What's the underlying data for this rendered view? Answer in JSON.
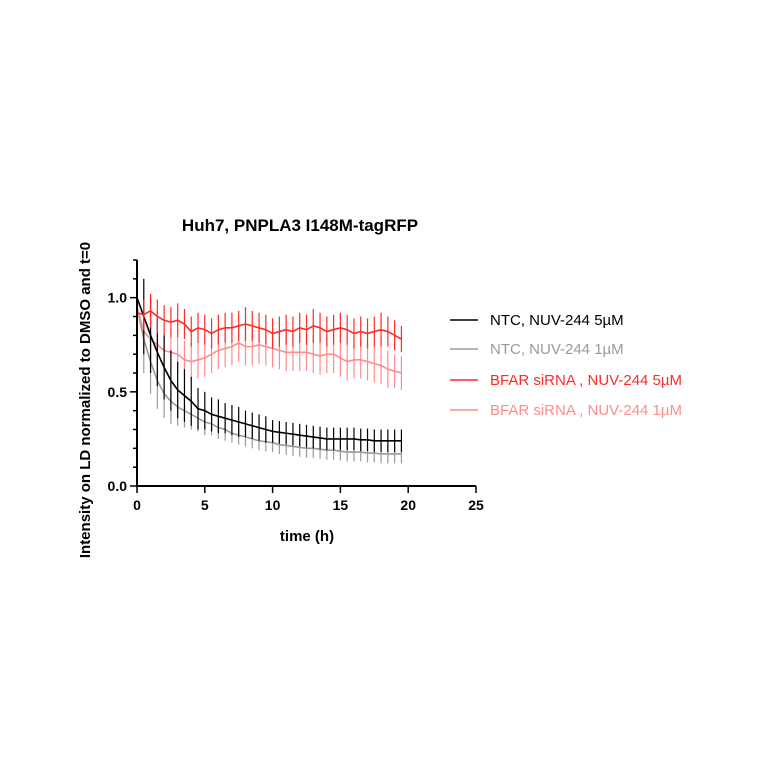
{
  "chart_data": {
    "type": "line",
    "title": "Huh7, PNPLA3 I148M-tagRFP",
    "xlabel": "time (h)",
    "ylabel": "Intensity on LD normalized to DMSO and t=0",
    "xlim": [
      0,
      25
    ],
    "ylim": [
      0,
      1.2
    ],
    "xticks": [
      "0",
      "5",
      "10",
      "15",
      "20",
      "25"
    ],
    "yticks": [
      "0.0",
      "0.5",
      "1.0"
    ],
    "grid": false,
    "legend_position": "right",
    "error_bars": true,
    "x": [
      0,
      0.5,
      1,
      1.5,
      2,
      2.5,
      3,
      3.5,
      4,
      4.5,
      5,
      5.5,
      6,
      6.5,
      7,
      7.5,
      8,
      8.5,
      9,
      9.5,
      10,
      10.5,
      11,
      11.5,
      12,
      12.5,
      13,
      13.5,
      14,
      14.5,
      15,
      15.5,
      16,
      16.5,
      17,
      17.5,
      18,
      18.5,
      19,
      19.5
    ],
    "series": [
      {
        "name": "NTC, NUV-244 5µM",
        "color": "#000000",
        "values": [
          1.0,
          0.9,
          0.8,
          0.71,
          0.63,
          0.56,
          0.51,
          0.48,
          0.45,
          0.41,
          0.4,
          0.38,
          0.37,
          0.36,
          0.35,
          0.34,
          0.33,
          0.32,
          0.31,
          0.3,
          0.29,
          0.285,
          0.28,
          0.275,
          0.27,
          0.265,
          0.26,
          0.255,
          0.25,
          0.25,
          0.25,
          0.25,
          0.25,
          0.245,
          0.245,
          0.24,
          0.24,
          0.24,
          0.24,
          0.24
        ],
        "errors": [
          0.15,
          0.2,
          0.2,
          0.18,
          0.17,
          0.16,
          0.15,
          0.14,
          0.13,
          0.11,
          0.1,
          0.09,
          0.09,
          0.08,
          0.08,
          0.08,
          0.07,
          0.07,
          0.07,
          0.07,
          0.06,
          0.06,
          0.06,
          0.06,
          0.06,
          0.06,
          0.06,
          0.06,
          0.06,
          0.06,
          0.06,
          0.06,
          0.06,
          0.06,
          0.06,
          0.06,
          0.06,
          0.06,
          0.06,
          0.06
        ]
      },
      {
        "name": "NTC, NUV-244 1µM",
        "color": "#9a9a9a",
        "values": [
          0.95,
          0.78,
          0.66,
          0.56,
          0.49,
          0.45,
          0.42,
          0.4,
          0.38,
          0.36,
          0.34,
          0.33,
          0.31,
          0.3,
          0.28,
          0.27,
          0.26,
          0.25,
          0.24,
          0.235,
          0.23,
          0.22,
          0.215,
          0.21,
          0.205,
          0.2,
          0.2,
          0.195,
          0.19,
          0.19,
          0.185,
          0.18,
          0.18,
          0.18,
          0.175,
          0.175,
          0.17,
          0.17,
          0.17,
          0.17
        ],
        "errors": [
          0.15,
          0.18,
          0.17,
          0.15,
          0.13,
          0.12,
          0.1,
          0.09,
          0.08,
          0.07,
          0.07,
          0.06,
          0.06,
          0.06,
          0.05,
          0.05,
          0.05,
          0.05,
          0.05,
          0.05,
          0.05,
          0.05,
          0.05,
          0.05,
          0.05,
          0.05,
          0.05,
          0.05,
          0.05,
          0.05,
          0.05,
          0.05,
          0.05,
          0.05,
          0.05,
          0.05,
          0.05,
          0.05,
          0.05,
          0.05
        ]
      },
      {
        "name": "BFAR siRNA , NUV-244 5µM",
        "color": "#ff2a2a",
        "values": [
          0.92,
          0.91,
          0.93,
          0.9,
          0.88,
          0.87,
          0.88,
          0.86,
          0.82,
          0.84,
          0.83,
          0.81,
          0.83,
          0.84,
          0.84,
          0.85,
          0.86,
          0.85,
          0.84,
          0.83,
          0.81,
          0.82,
          0.83,
          0.82,
          0.84,
          0.83,
          0.85,
          0.84,
          0.82,
          0.83,
          0.84,
          0.83,
          0.81,
          0.82,
          0.81,
          0.82,
          0.83,
          0.82,
          0.8,
          0.78
        ],
        "errors": [
          0.05,
          0.08,
          0.09,
          0.09,
          0.08,
          0.08,
          0.09,
          0.08,
          0.08,
          0.08,
          0.08,
          0.08,
          0.08,
          0.08,
          0.08,
          0.08,
          0.09,
          0.08,
          0.08,
          0.08,
          0.08,
          0.08,
          0.08,
          0.08,
          0.08,
          0.08,
          0.09,
          0.08,
          0.08,
          0.08,
          0.08,
          0.08,
          0.08,
          0.08,
          0.08,
          0.08,
          0.09,
          0.08,
          0.08,
          0.07
        ]
      },
      {
        "name": "BFAR siRNA , NUV-244 1µM",
        "color": "#ff8c8c",
        "values": [
          0.95,
          0.82,
          0.78,
          0.75,
          0.72,
          0.71,
          0.7,
          0.67,
          0.66,
          0.67,
          0.68,
          0.7,
          0.72,
          0.73,
          0.74,
          0.76,
          0.74,
          0.74,
          0.75,
          0.74,
          0.73,
          0.72,
          0.71,
          0.71,
          0.71,
          0.71,
          0.7,
          0.69,
          0.7,
          0.7,
          0.68,
          0.66,
          0.67,
          0.67,
          0.66,
          0.65,
          0.64,
          0.62,
          0.61,
          0.6
        ],
        "errors": [
          0.05,
          0.1,
          0.1,
          0.1,
          0.1,
          0.1,
          0.1,
          0.1,
          0.1,
          0.1,
          0.1,
          0.1,
          0.1,
          0.1,
          0.1,
          0.1,
          0.1,
          0.1,
          0.1,
          0.1,
          0.1,
          0.1,
          0.1,
          0.1,
          0.1,
          0.1,
          0.1,
          0.1,
          0.1,
          0.1,
          0.1,
          0.1,
          0.1,
          0.1,
          0.1,
          0.1,
          0.1,
          0.1,
          0.09,
          0.09
        ]
      }
    ]
  }
}
